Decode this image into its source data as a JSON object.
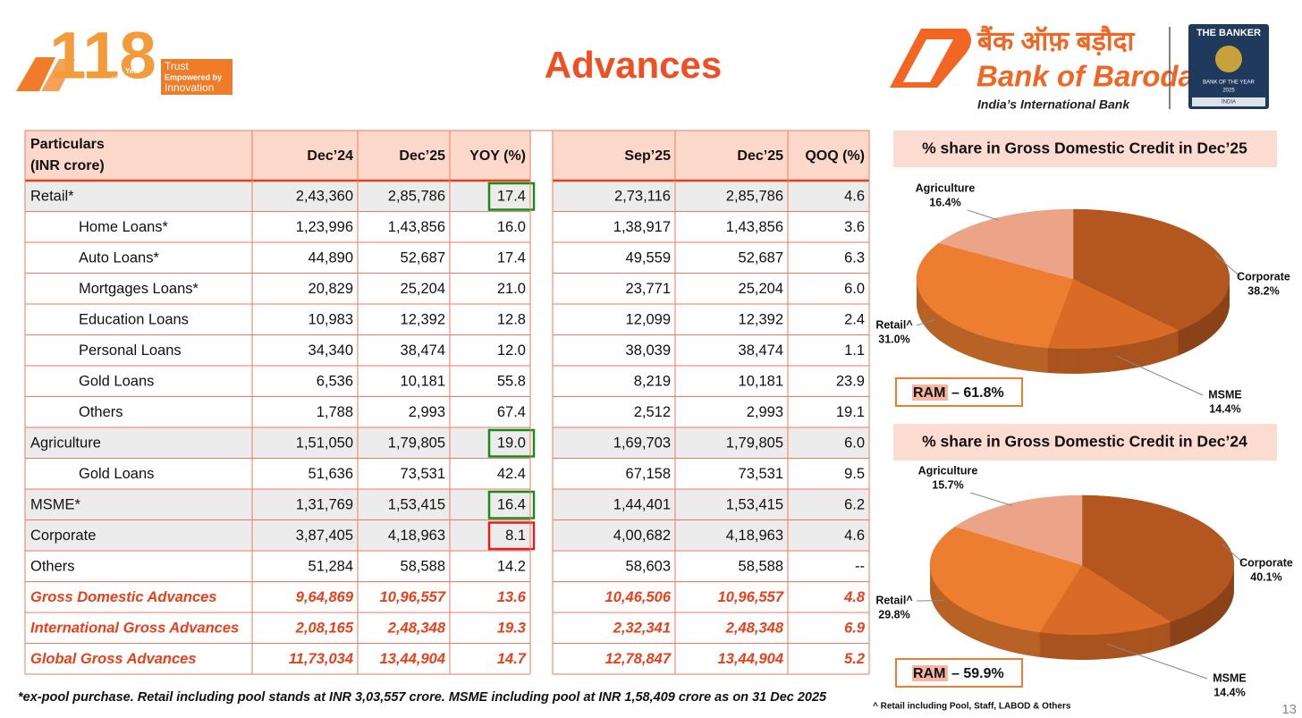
{
  "header": {
    "title": "Advances",
    "left_logo": {
      "number": "118",
      "foundation": "Foundation",
      "year": "Year",
      "line1": "Trust",
      "line2": "Empowered by",
      "line3": "Innovation"
    },
    "right_logo": {
      "hindi": "बैंक ऑफ़ बड़ौदा",
      "name": "Bank of Baroda",
      "tagline": "India’s International Bank"
    },
    "award": {
      "publisher": "THE BANKER",
      "award": "BANK OF THE YEAR",
      "year": "2025",
      "country": "INDIA"
    }
  },
  "table": {
    "label_header": [
      "Particulars",
      "(INR crore)"
    ],
    "columns": [
      "Dec’24",
      "Dec’25",
      "YOY (%)",
      "Sep’25",
      "Dec’25",
      "QOQ (%)"
    ],
    "rows": [
      {
        "label": "Retail*",
        "values": [
          "2,43,360",
          "2,85,786",
          "17.4",
          "2,73,116",
          "2,85,786",
          "4.6"
        ],
        "shaded": true,
        "box": "#1e8a1e"
      },
      {
        "label": "Home Loans*",
        "values": [
          "1,23,996",
          "1,43,856",
          "16.0",
          "1,38,917",
          "1,43,856",
          "3.6"
        ],
        "indented": true
      },
      {
        "label": "Auto Loans*",
        "values": [
          "44,890",
          "52,687",
          "17.4",
          "49,559",
          "52,687",
          "6.3"
        ],
        "indented": true
      },
      {
        "label": "Mortgages Loans*",
        "values": [
          "20,829",
          "25,204",
          "21.0",
          "23,771",
          "25,204",
          "6.0"
        ],
        "indented": true
      },
      {
        "label": "Education Loans",
        "values": [
          "10,983",
          "12,392",
          "12.8",
          "12,099",
          "12,392",
          "2.4"
        ],
        "indented": true
      },
      {
        "label": "Personal Loans",
        "values": [
          "34,340",
          "38,474",
          "12.0",
          "38,039",
          "38,474",
          "1.1"
        ],
        "indented": true
      },
      {
        "label": "Gold Loans",
        "values": [
          "6,536",
          "10,181",
          "55.8",
          "8,219",
          "10,181",
          "23.9"
        ],
        "indented": true
      },
      {
        "label": "Others",
        "values": [
          "1,788",
          "2,993",
          "67.4",
          "2,512",
          "2,993",
          "19.1"
        ],
        "indented": true
      },
      {
        "label": "Agriculture",
        "values": [
          "1,51,050",
          "1,79,805",
          "19.0",
          "1,69,703",
          "1,79,805",
          "6.0"
        ],
        "shaded": true,
        "box": "#1e8a1e"
      },
      {
        "label": "Gold Loans",
        "values": [
          "51,636",
          "73,531",
          "42.4",
          "67,158",
          "73,531",
          "9.5"
        ],
        "indented": true
      },
      {
        "label": "MSME*",
        "values": [
          "1,31,769",
          "1,53,415",
          "16.4",
          "1,44,401",
          "1,53,415",
          "6.2"
        ],
        "shaded": true,
        "box": "#1e8a1e"
      },
      {
        "label": "Corporate",
        "values": [
          "3,87,405",
          "4,18,963",
          "8.1",
          "4,00,682",
          "4,18,963",
          "4.6"
        ],
        "shaded": true,
        "box": "#e02020"
      },
      {
        "label": "Others",
        "values": [
          "51,284",
          "58,588",
          "14.2",
          "58,603",
          "58,588",
          "--"
        ]
      },
      {
        "label": "Gross Domestic Advances",
        "values": [
          "9,64,869",
          "10,96,557",
          "13.6",
          "10,46,506",
          "10,96,557",
          "4.8"
        ],
        "total": true
      },
      {
        "label": "International Gross Advances",
        "values": [
          "2,08,165",
          "2,48,348",
          "19.3",
          "2,32,341",
          "2,48,348",
          "6.9"
        ],
        "total": true
      },
      {
        "label": "Global Gross Advances",
        "values": [
          "11,73,034",
          "13,44,904",
          "14.7",
          "12,78,847",
          "13,44,904",
          "5.2"
        ],
        "total": true
      }
    ]
  },
  "chart_data": [
    {
      "type": "pie",
      "title": "% share in Gross Domestic Credit in Dec’25",
      "categories": [
        "Corporate",
        "MSME",
        "Retail^",
        "Agriculture"
      ],
      "values": [
        38.2,
        14.4,
        31.0,
        16.4
      ],
      "value_labels": [
        "38.2%",
        "14.4%",
        "31.0%",
        "16.4%"
      ],
      "colors": [
        "#b4561f",
        "#d96b26",
        "#ed7d31",
        "#eba487"
      ],
      "annotation_key": "RAM",
      "annotation_text": "– 61.8%"
    },
    {
      "type": "pie",
      "title": "% share in Gross Domestic Credit in Dec’24",
      "categories": [
        "Corporate",
        "MSME",
        "Retail^",
        "Agriculture"
      ],
      "values": [
        40.1,
        14.4,
        29.8,
        15.7
      ],
      "value_labels": [
        "40.1%",
        "14.4%",
        "29.8%",
        "15.7%"
      ],
      "colors": [
        "#b4561f",
        "#d96b26",
        "#ed7d31",
        "#eba487"
      ],
      "annotation_key": "RAM",
      "annotation_text": "– 59.9%"
    }
  ],
  "footnotes": {
    "main": "*ex-pool purchase. Retail including pool stands at INR 3,03,557 crore. MSME including pool at INR 1,58,409 crore as on 31 Dec 2025",
    "retail": "^ Retail including Pool, Staff, LABOD & Others"
  },
  "page_number": "13"
}
